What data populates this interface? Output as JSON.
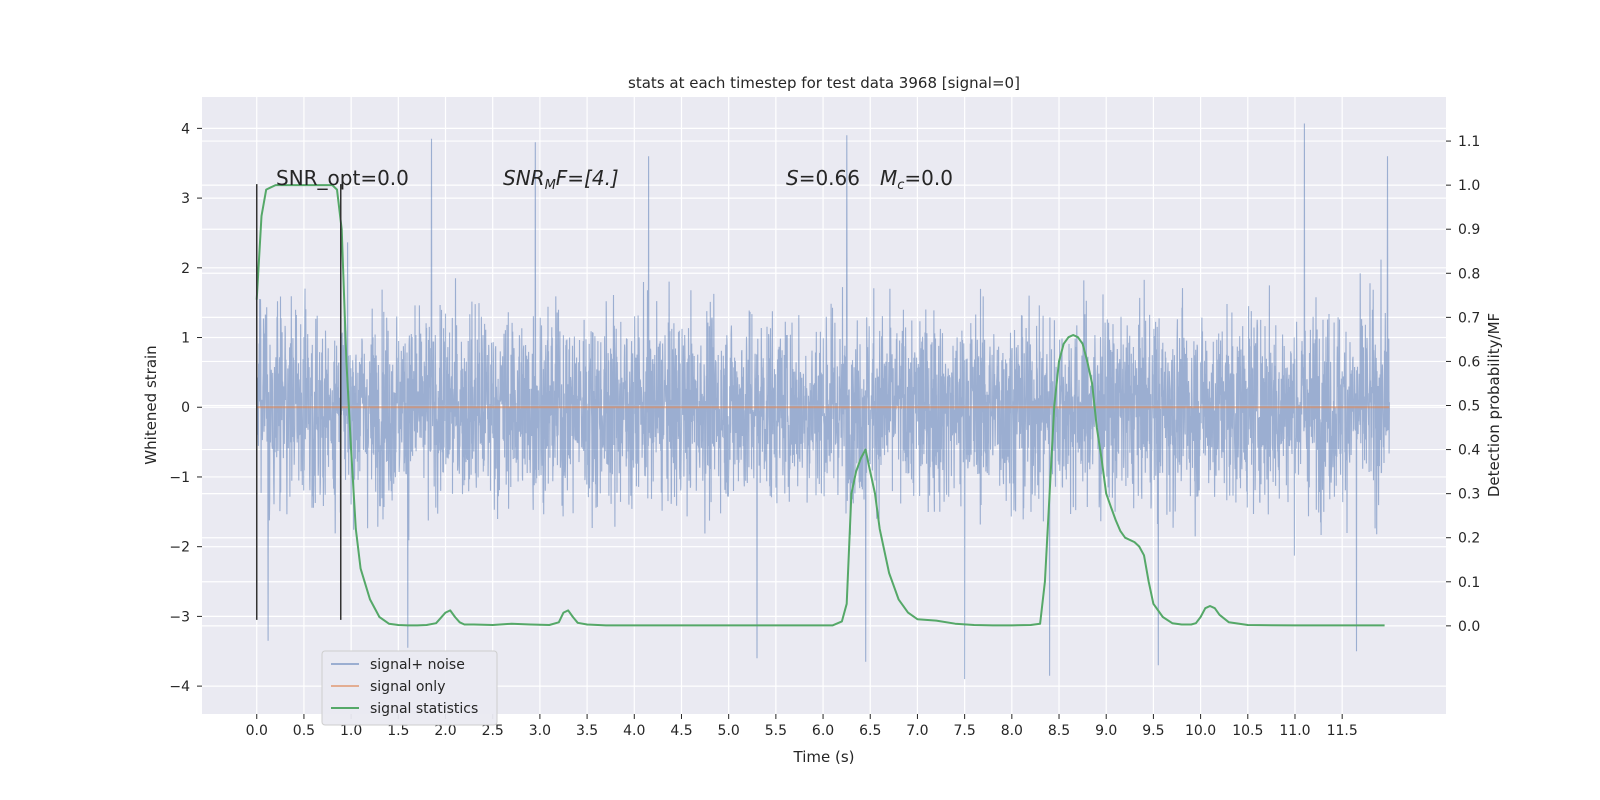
{
  "chart_data": {
    "type": "line",
    "title": "stats at each timestep for test data 3968 [signal=0]",
    "xlabel": "Time (s)",
    "ylabel": "Whitened strain",
    "ylabel_right": "Detection probability/MF",
    "xlim": [
      -0.58,
      12.6
    ],
    "ylim": [
      -4.4,
      4.45
    ],
    "ylim_right": [
      -0.2,
      1.2
    ],
    "xticks": [
      0.0,
      0.5,
      1.0,
      1.5,
      2.0,
      2.5,
      3.0,
      3.5,
      4.0,
      4.5,
      5.0,
      5.5,
      6.0,
      6.5,
      7.0,
      7.5,
      8.0,
      8.5,
      9.0,
      9.5,
      10.0,
      10.5,
      11.0,
      11.5
    ],
    "xtick_labels": [
      "0.0",
      "0.5",
      "1.0",
      "1.5",
      "2.0",
      "2.5",
      "3.0",
      "3.5",
      "4.0",
      "4.5",
      "5.0",
      "5.5",
      "6.0",
      "6.5",
      "7.0",
      "7.5",
      "8.0",
      "8.5",
      "9.0",
      "9.5",
      "10.0",
      "10.5",
      "11.0",
      "11.5"
    ],
    "yticks": [
      -4,
      -3,
      -2,
      -1,
      0,
      1,
      2,
      3,
      4
    ],
    "ytick_labels": [
      "−4",
      "−3",
      "−2",
      "−1",
      "0",
      "1",
      "2",
      "3",
      "4"
    ],
    "yticks_right": [
      0.0,
      0.1,
      0.2,
      0.3,
      0.4,
      0.5,
      0.6,
      0.7,
      0.8,
      0.9,
      1.0,
      1.1
    ],
    "ytick_right_labels": [
      "0.0",
      "0.1",
      "0.2",
      "0.3",
      "0.4",
      "0.5",
      "0.6",
      "0.7",
      "0.8",
      "0.9",
      "1.0",
      "1.1"
    ],
    "grid": true,
    "legend_position": "lower-left",
    "annotations": {
      "snr_opt": "SNR_opt=0.0",
      "snr_mf_base": "SNR",
      "snr_mf_sub": "M",
      "snr_mf_rest": "F=[4.]",
      "s_label": "S",
      "s_value": "=0.66",
      "mc_label": "M",
      "mc_sub": "c",
      "mc_value": "=0.0"
    },
    "window_markers": {
      "t_start": 0.0,
      "t_end": 0.89,
      "y_range": [
        -3.05,
        3.2
      ]
    },
    "noise_envelope": {
      "t_range": [
        0.0,
        12.0
      ],
      "typical_amplitude": 2.0,
      "peaks": [
        {
          "t": 1.85,
          "y": 3.85
        },
        {
          "t": 2.95,
          "y": 3.8
        },
        {
          "t": 4.15,
          "y": 3.6
        },
        {
          "t": 6.25,
          "y": 3.9
        },
        {
          "t": 11.1,
          "y": 4.07
        },
        {
          "t": 11.98,
          "y": 3.6
        },
        {
          "t": 1.6,
          "y": -3.45
        },
        {
          "t": 0.12,
          "y": -3.35
        },
        {
          "t": 6.45,
          "y": -3.65
        },
        {
          "t": 7.5,
          "y": -3.9
        },
        {
          "t": 8.4,
          "y": -3.85
        },
        {
          "t": 11.65,
          "y": -3.5
        },
        {
          "t": 9.55,
          "y": -3.7
        },
        {
          "t": 5.3,
          "y": -3.6
        }
      ]
    },
    "series": [
      {
        "name": "signal+ noise",
        "color": "#4c72b0",
        "axis": "left",
        "kind": "noise"
      },
      {
        "name": "signal only",
        "color": "#dd8452",
        "axis": "left",
        "x": [
          0.0,
          12.0
        ],
        "y": [
          0.0,
          0.0
        ]
      },
      {
        "name": "signal statistics",
        "color": "#55a868",
        "axis": "right",
        "x": [
          0.0,
          0.05,
          0.1,
          0.15,
          0.2,
          0.3,
          0.4,
          0.5,
          0.6,
          0.7,
          0.75,
          0.8,
          0.85,
          0.9,
          0.95,
          1.0,
          1.05,
          1.1,
          1.2,
          1.3,
          1.4,
          1.5,
          1.6,
          1.7,
          1.8,
          1.9,
          2.0,
          2.05,
          2.1,
          2.15,
          2.2,
          2.3,
          2.5,
          2.7,
          2.9,
          3.1,
          3.2,
          3.25,
          3.3,
          3.35,
          3.4,
          3.5,
          3.7,
          4.0,
          4.5,
          5.0,
          5.5,
          6.0,
          6.1,
          6.2,
          6.25,
          6.3,
          6.35,
          6.4,
          6.45,
          6.5,
          6.55,
          6.6,
          6.7,
          6.8,
          6.9,
          7.0,
          7.2,
          7.4,
          7.6,
          7.8,
          8.0,
          8.2,
          8.3,
          8.35,
          8.4,
          8.45,
          8.5,
          8.55,
          8.6,
          8.65,
          8.7,
          8.75,
          8.8,
          8.85,
          8.9,
          8.95,
          9.0,
          9.05,
          9.1,
          9.15,
          9.2,
          9.3,
          9.35,
          9.4,
          9.45,
          9.5,
          9.6,
          9.7,
          9.8,
          9.9,
          9.95,
          10.0,
          10.05,
          10.1,
          10.15,
          10.2,
          10.3,
          10.5,
          11.0,
          11.5,
          11.95
        ],
        "y": [
          0.74,
          0.93,
          0.99,
          0.995,
          1.0,
          1.0,
          1.0,
          1.0,
          1.0,
          1.0,
          1.0,
          1.0,
          0.99,
          0.9,
          0.6,
          0.4,
          0.22,
          0.13,
          0.06,
          0.02,
          0.005,
          0.002,
          0.001,
          0.001,
          0.002,
          0.006,
          0.03,
          0.035,
          0.02,
          0.008,
          0.003,
          0.003,
          0.002,
          0.005,
          0.003,
          0.002,
          0.008,
          0.03,
          0.035,
          0.02,
          0.007,
          0.003,
          0.001,
          0.001,
          0.001,
          0.001,
          0.001,
          0.001,
          0.001,
          0.01,
          0.05,
          0.3,
          0.35,
          0.38,
          0.4,
          0.35,
          0.3,
          0.22,
          0.12,
          0.06,
          0.03,
          0.015,
          0.012,
          0.005,
          0.002,
          0.001,
          0.001,
          0.002,
          0.005,
          0.1,
          0.3,
          0.5,
          0.6,
          0.64,
          0.655,
          0.66,
          0.655,
          0.64,
          0.6,
          0.55,
          0.45,
          0.38,
          0.3,
          0.27,
          0.24,
          0.215,
          0.2,
          0.19,
          0.18,
          0.16,
          0.1,
          0.05,
          0.02,
          0.006,
          0.003,
          0.003,
          0.006,
          0.02,
          0.04,
          0.045,
          0.04,
          0.025,
          0.008,
          0.002,
          0.001,
          0.001,
          0.001
        ]
      }
    ]
  }
}
